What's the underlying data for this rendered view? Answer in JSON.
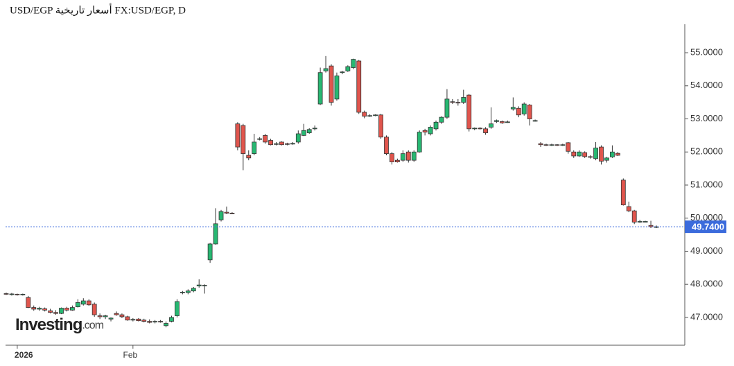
{
  "chart_data": {
    "type": "candlestick",
    "title": "USD/EGP أسعار تاريخية FX:USD/EGP, D",
    "logo": {
      "name": "Investing",
      "suffix": ".com"
    },
    "up_color": "#27b872",
    "down_color": "#e0554d",
    "ylim": [
      46.16,
      55.86
    ],
    "yticks": [
      {
        "value": 47,
        "label": "47.0000"
      },
      {
        "value": 48,
        "label": "48.0000"
      },
      {
        "value": 49,
        "label": "49.0000"
      },
      {
        "value": 50,
        "label": "50.0000"
      },
      {
        "value": 51,
        "label": "51.0000"
      },
      {
        "value": 52,
        "label": "52.0000"
      },
      {
        "value": 53,
        "label": "53.0000"
      },
      {
        "value": 54,
        "label": "54.0000"
      },
      {
        "value": 55,
        "label": "55.0000"
      }
    ],
    "last_price": {
      "value": 49.74,
      "label": "49.7400"
    },
    "categories": [
      null,
      null,
      "2026",
      null,
      null,
      null,
      null,
      null,
      null,
      null,
      null,
      null,
      null,
      null,
      null,
      null,
      null,
      null,
      null,
      null,
      null,
      null,
      null,
      "Feb",
      null,
      null,
      null,
      null,
      null,
      null,
      null,
      null,
      null,
      null,
      null,
      null,
      null,
      null,
      null,
      null,
      null,
      null,
      null,
      null,
      null,
      null,
      null,
      null,
      null,
      null,
      null,
      null,
      null,
      null,
      null,
      null,
      null,
      null,
      null,
      null,
      null,
      null,
      null,
      null,
      null,
      null,
      null,
      null,
      null,
      null,
      null,
      null,
      null,
      null,
      null,
      null,
      null,
      null,
      null,
      null,
      null,
      null,
      null,
      null,
      null,
      null,
      null,
      null,
      null,
      null,
      null,
      null,
      null,
      null,
      null,
      null,
      null,
      null,
      null,
      null,
      null,
      null,
      null,
      null,
      null,
      null,
      null,
      null,
      null,
      null,
      null,
      null,
      null,
      null,
      null,
      null,
      null,
      null,
      null
    ],
    "ohlc": [
      [
        47.72,
        47.75,
        47.68,
        47.7
      ],
      [
        47.7,
        47.74,
        47.66,
        47.71
      ],
      [
        47.7,
        47.72,
        47.66,
        47.69
      ],
      [
        47.7,
        47.72,
        47.66,
        47.7
      ],
      [
        47.6,
        47.65,
        47.28,
        47.3
      ],
      [
        47.3,
        47.36,
        47.2,
        47.25
      ],
      [
        47.25,
        47.32,
        47.2,
        47.28
      ],
      [
        47.26,
        47.3,
        47.18,
        47.22
      ],
      [
        47.2,
        47.26,
        47.12,
        47.15
      ],
      [
        47.15,
        47.22,
        47.08,
        47.12
      ],
      [
        47.12,
        47.3,
        47.1,
        47.28
      ],
      [
        47.28,
        47.32,
        47.18,
        47.22
      ],
      [
        47.22,
        47.36,
        47.2,
        47.3
      ],
      [
        47.32,
        47.55,
        47.3,
        47.45
      ],
      [
        47.4,
        47.58,
        47.36,
        47.5
      ],
      [
        47.5,
        47.55,
        47.35,
        47.38
      ],
      [
        47.4,
        47.45,
        47.02,
        47.08
      ],
      [
        47.05,
        47.12,
        46.95,
        47.02
      ],
      [
        47.02,
        47.08,
        46.95,
        47.05
      ],
      [
        46.95,
        47.0,
        46.88,
        46.98
      ],
      [
        47.12,
        47.18,
        47.05,
        47.08
      ],
      [
        47.08,
        47.12,
        46.98,
        47.02
      ],
      [
        47.02,
        47.05,
        46.9,
        46.92
      ],
      [
        46.92,
        46.98,
        46.88,
        46.94
      ],
      [
        46.95,
        46.98,
        46.88,
        46.9
      ],
      [
        46.92,
        46.96,
        46.85,
        46.88
      ],
      [
        46.88,
        46.94,
        46.82,
        46.85
      ],
      [
        46.86,
        46.92,
        46.82,
        46.88
      ],
      [
        46.88,
        46.92,
        46.84,
        46.87
      ],
      [
        46.75,
        46.88,
        46.7,
        46.82
      ],
      [
        46.88,
        47.05,
        46.85,
        47.0
      ],
      [
        47.05,
        47.55,
        47.0,
        47.48
      ],
      [
        47.74,
        47.8,
        47.7,
        47.76
      ],
      [
        47.75,
        47.85,
        47.7,
        47.8
      ],
      [
        47.8,
        47.92,
        47.76,
        47.88
      ],
      [
        47.95,
        48.15,
        47.9,
        47.98
      ],
      [
        47.97,
        48.0,
        47.72,
        47.97
      ],
      [
        48.74,
        49.25,
        48.65,
        49.22
      ],
      [
        49.22,
        50.3,
        49.2,
        49.83
      ],
      [
        49.95,
        50.25,
        49.9,
        50.2
      ],
      [
        50.18,
        50.35,
        50.12,
        50.15
      ],
      [
        50.15,
        50.18,
        50.12,
        50.14
      ],
      [
        52.85,
        52.9,
        52.05,
        52.15
      ],
      [
        52.8,
        52.85,
        51.45,
        51.95
      ],
      [
        51.9,
        52.05,
        51.75,
        51.82
      ],
      [
        51.95,
        52.55,
        51.9,
        52.3
      ],
      [
        52.4,
        52.45,
        52.35,
        52.4
      ],
      [
        52.5,
        52.55,
        52.25,
        52.3
      ],
      [
        52.35,
        52.4,
        52.2,
        52.22
      ],
      [
        52.25,
        52.3,
        52.2,
        52.25
      ],
      [
        52.3,
        52.32,
        52.2,
        52.22
      ],
      [
        52.25,
        52.28,
        52.2,
        52.24
      ],
      [
        52.25,
        52.3,
        52.22,
        52.26
      ],
      [
        52.3,
        52.65,
        52.25,
        52.55
      ],
      [
        52.5,
        52.85,
        52.48,
        52.65
      ],
      [
        52.58,
        52.72,
        52.55,
        52.68
      ],
      [
        52.72,
        52.8,
        52.65,
        52.72
      ],
      [
        53.45,
        54.55,
        53.42,
        54.4
      ],
      [
        54.45,
        54.9,
        54.4,
        54.52
      ],
      [
        54.6,
        54.65,
        53.4,
        53.5
      ],
      [
        53.6,
        54.4,
        53.55,
        54.3
      ],
      [
        54.4,
        54.45,
        54.35,
        54.42
      ],
      [
        54.45,
        54.62,
        54.42,
        54.58
      ],
      [
        54.55,
        54.82,
        54.5,
        54.8
      ],
      [
        54.75,
        54.78,
        53.15,
        53.2
      ],
      [
        53.2,
        53.25,
        53.02,
        53.08
      ],
      [
        53.1,
        53.14,
        53.06,
        53.1
      ],
      [
        53.1,
        53.14,
        53.08,
        53.12
      ],
      [
        53.12,
        53.15,
        52.4,
        52.45
      ],
      [
        52.45,
        52.5,
        51.9,
        51.95
      ],
      [
        51.95,
        52.0,
        51.62,
        51.7
      ],
      [
        51.75,
        51.8,
        51.68,
        51.7
      ],
      [
        51.75,
        52.05,
        51.7,
        51.95
      ],
      [
        52.0,
        52.05,
        51.68,
        51.75
      ],
      [
        51.75,
        52.05,
        51.7,
        52.0
      ],
      [
        52.0,
        52.65,
        51.98,
        52.6
      ],
      [
        52.65,
        52.7,
        52.5,
        52.6
      ],
      [
        52.55,
        52.8,
        52.5,
        52.75
      ],
      [
        52.7,
        52.95,
        52.65,
        52.9
      ],
      [
        52.9,
        53.08,
        52.85,
        53.05
      ],
      [
        53.05,
        53.9,
        53.0,
        53.6
      ],
      [
        53.52,
        53.6,
        53.45,
        53.5
      ],
      [
        53.5,
        53.6,
        53.4,
        53.48
      ],
      [
        53.5,
        53.88,
        53.45,
        53.65
      ],
      [
        53.72,
        53.75,
        52.62,
        52.7
      ],
      [
        52.7,
        52.74,
        52.66,
        52.72
      ],
      [
        52.72,
        52.75,
        52.68,
        52.7
      ],
      [
        52.7,
        52.75,
        52.52,
        52.58
      ],
      [
        52.75,
        53.35,
        52.7,
        52.85
      ],
      [
        52.92,
        52.98,
        52.88,
        52.95
      ],
      [
        52.92,
        52.95,
        52.85,
        52.88
      ],
      [
        52.9,
        52.95,
        52.88,
        52.91
      ],
      [
        53.3,
        53.65,
        53.25,
        53.35
      ],
      [
        53.32,
        53.38,
        53.05,
        53.12
      ],
      [
        53.15,
        53.5,
        53.1,
        53.45
      ],
      [
        53.42,
        53.45,
        52.8,
        53.0
      ],
      [
        52.95,
        52.98,
        52.92,
        52.95
      ],
      [
        52.25,
        52.3,
        52.15,
        52.22
      ],
      [
        52.22,
        52.25,
        52.18,
        52.21
      ],
      [
        52.22,
        52.25,
        52.18,
        52.22
      ],
      [
        52.22,
        52.24,
        52.18,
        52.21
      ],
      [
        52.22,
        52.25,
        52.18,
        52.22
      ],
      [
        52.28,
        52.3,
        51.95,
        52.02
      ],
      [
        52.0,
        52.05,
        51.82,
        51.88
      ],
      [
        51.88,
        52.05,
        51.85,
        52.0
      ],
      [
        51.98,
        52.02,
        51.82,
        51.86
      ],
      [
        51.86,
        51.9,
        51.8,
        51.85
      ],
      [
        51.8,
        52.3,
        51.75,
        52.12
      ],
      [
        52.15,
        52.2,
        51.62,
        51.72
      ],
      [
        51.75,
        51.85,
        51.68,
        51.82
      ],
      [
        51.85,
        52.2,
        51.82,
        52.0
      ],
      [
        51.96,
        52.0,
        51.88,
        51.9
      ],
      [
        51.15,
        51.2,
        50.38,
        50.4
      ],
      [
        50.35,
        50.5,
        50.18,
        50.22
      ],
      [
        50.22,
        50.25,
        49.82,
        49.88
      ],
      [
        49.9,
        49.95,
        49.86,
        49.9
      ],
      [
        49.9,
        49.92,
        49.88,
        49.9
      ],
      [
        49.78,
        49.92,
        49.7,
        49.74
      ],
      [
        49.72,
        49.78,
        49.7,
        49.74
      ]
    ]
  }
}
